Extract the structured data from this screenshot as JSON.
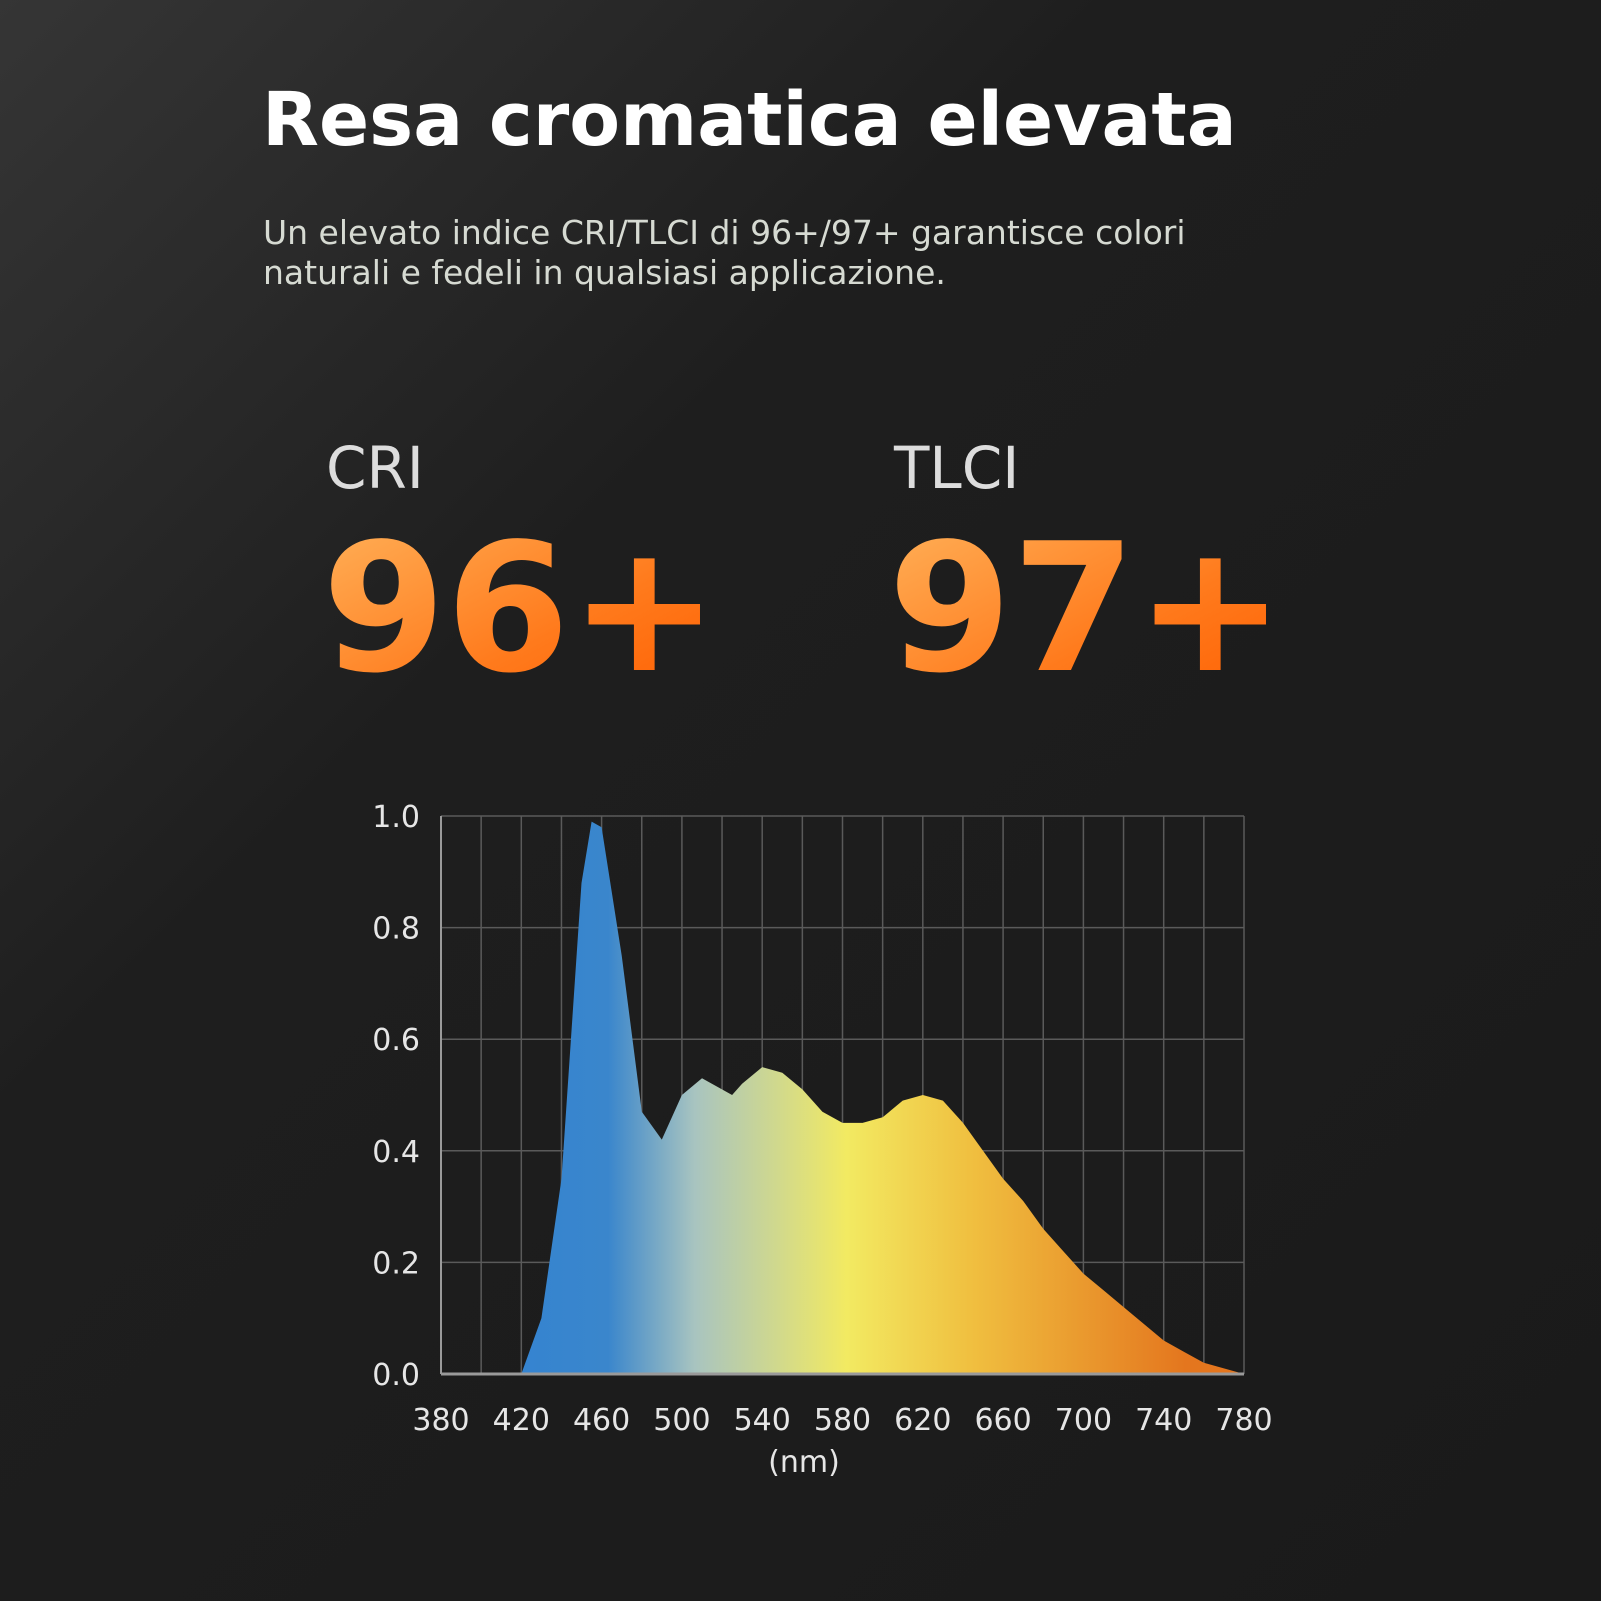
{
  "header": {
    "title": "Resa cromatica elevata",
    "subtitle": [
      "Un elevato indice CRI/TLCI di 96+/97+ garantisce colori",
      "naturali e fedeli in qualsiasi applicazione."
    ]
  },
  "stats": [
    {
      "label": "CRI",
      "value": "96+"
    },
    {
      "label": "TLCI",
      "value": "97+"
    }
  ],
  "chart_data": {
    "type": "area",
    "x_label": "(nm)",
    "x": [
      420,
      430,
      440,
      450,
      455,
      460,
      470,
      480,
      490,
      500,
      510,
      520,
      525,
      530,
      540,
      550,
      560,
      570,
      580,
      590,
      600,
      610,
      620,
      630,
      640,
      650,
      660,
      670,
      680,
      690,
      700,
      710,
      720,
      730,
      740,
      750,
      760,
      770,
      780
    ],
    "values": [
      0,
      0.1,
      0.35,
      0.88,
      0.99,
      0.98,
      0.75,
      0.47,
      0.42,
      0.5,
      0.53,
      0.51,
      0.5,
      0.52,
      0.55,
      0.54,
      0.51,
      0.47,
      0.45,
      0.45,
      0.46,
      0.49,
      0.5,
      0.49,
      0.45,
      0.4,
      0.35,
      0.31,
      0.26,
      0.22,
      0.18,
      0.15,
      0.12,
      0.09,
      0.06,
      0.04,
      0.02,
      0.01,
      0
    ],
    "colors": [
      "#3584d0",
      "#3a86cc",
      "#a8c4c0",
      "#f2ea62",
      "#f0c040",
      "#e4761e"
    ],
    "xlim": [
      380,
      780
    ],
    "ylim": [
      0,
      1
    ],
    "xticks": [
      380,
      420,
      460,
      500,
      540,
      580,
      620,
      660,
      700,
      740,
      780
    ],
    "xgrid": [
      380,
      400,
      420,
      440,
      460,
      480,
      500,
      520,
      540,
      560,
      580,
      600,
      620,
      640,
      660,
      680,
      700,
      720,
      740,
      760,
      780
    ],
    "yticks": [
      {
        "value": 0,
        "label": "0.0"
      },
      {
        "value": 0.2,
        "label": "0.2"
      },
      {
        "value": 0.4,
        "label": "0.4"
      },
      {
        "value": 0.6,
        "label": "0.6"
      },
      {
        "value": 0.8,
        "label": "0.8"
      },
      {
        "value": 1,
        "label": "1.0"
      }
    ],
    "grid": true
  }
}
